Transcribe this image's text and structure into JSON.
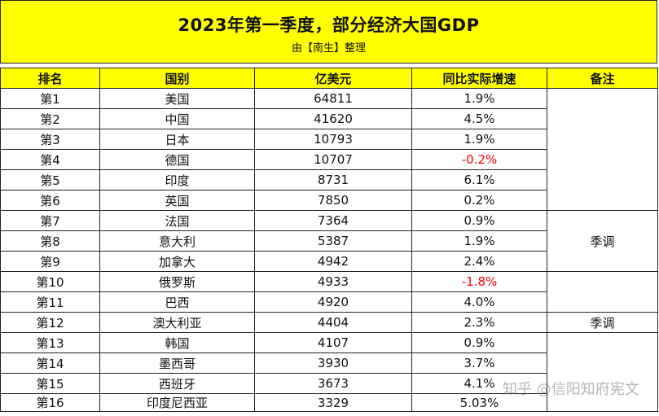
{
  "title": "2023年第一季度，部分经济大国GDP",
  "subtitle": "由【南生】整理",
  "table": {
    "headers": [
      "排名",
      "国别",
      "亿美元",
      "同比实际增速",
      "备注"
    ],
    "rows": [
      {
        "rank": "第1",
        "country": "美国",
        "gdp": "64811",
        "growth": "1.9%"
      },
      {
        "rank": "第2",
        "country": "中国",
        "gdp": "41620",
        "growth": "4.5%"
      },
      {
        "rank": "第3",
        "country": "日本",
        "gdp": "10793",
        "growth": "1.9%"
      },
      {
        "rank": "第4",
        "country": "德国",
        "gdp": "10707",
        "growth": "-0.2%",
        "negative": true
      },
      {
        "rank": "第5",
        "country": "印度",
        "gdp": "8731",
        "growth": "6.1%"
      },
      {
        "rank": "第6",
        "country": "英国",
        "gdp": "7850",
        "growth": "0.2%"
      },
      {
        "rank": "第7",
        "country": "法国",
        "gdp": "7364",
        "growth": "0.9%"
      },
      {
        "rank": "第8",
        "country": "意大利",
        "gdp": "5387",
        "growth": "1.9%"
      },
      {
        "rank": "第9",
        "country": "加拿大",
        "gdp": "4942",
        "growth": "2.4%"
      },
      {
        "rank": "第10",
        "country": "俄罗斯",
        "gdp": "4933",
        "growth": "-1.8%",
        "negative": true
      },
      {
        "rank": "第11",
        "country": "巴西",
        "gdp": "4920",
        "growth": "4.0%"
      },
      {
        "rank": "第12",
        "country": "澳大利亚",
        "gdp": "4404",
        "growth": "2.3%"
      },
      {
        "rank": "第13",
        "country": "韩国",
        "gdp": "4107",
        "growth": "0.9%"
      },
      {
        "rank": "第14",
        "country": "墨西哥",
        "gdp": "3930",
        "growth": "3.7%"
      },
      {
        "rank": "第15",
        "country": "西班牙",
        "gdp": "3673",
        "growth": "4.1%"
      },
      {
        "rank": "第16",
        "country": "印度尼西亚",
        "gdp": "3329",
        "growth": "5.03%"
      }
    ],
    "note_groups": [
      {
        "rows": 6,
        "text": ""
      },
      {
        "rows": 3,
        "text": "季调"
      },
      {
        "rows": 2,
        "text": ""
      },
      {
        "rows": 1,
        "text": "季调"
      },
      {
        "rows": 4,
        "text": ""
      }
    ]
  },
  "watermark": "知乎 @信阳知府宪文",
  "colors": {
    "band": "#ffff00",
    "negative": "#ff0000",
    "border": "#222222"
  }
}
